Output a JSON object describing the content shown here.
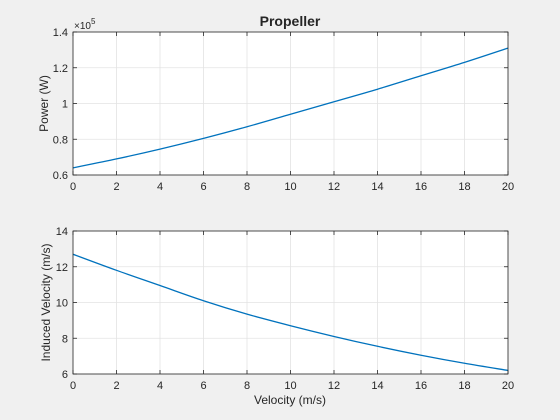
{
  "title": "Propeller",
  "colors": {
    "figure_bg": "#f0f0f0",
    "axes_bg": "#ffffff",
    "axis": "#262626",
    "grid": "#e3e3e3",
    "line": "#0072bd"
  },
  "chart_data": [
    {
      "type": "line",
      "title": "Propeller",
      "xlabel": "",
      "ylabel": "Power (W)",
      "y_exponent_label": "×10^5",
      "y_exponent_base": "×10",
      "y_exponent_power": "5",
      "xlim": [
        0,
        20
      ],
      "ylim": [
        0.6,
        1.4
      ],
      "grid": true,
      "x_ticks": [
        0,
        2,
        4,
        6,
        8,
        10,
        12,
        14,
        16,
        18,
        20
      ],
      "x_tick_labels": [
        "0",
        "2",
        "4",
        "6",
        "8",
        "10",
        "12",
        "14",
        "16",
        "18",
        "20"
      ],
      "y_ticks": [
        0.6,
        0.8,
        1.0,
        1.2,
        1.4
      ],
      "y_tick_labels": [
        "0.6",
        "0.8",
        "1",
        "1.2",
        "1.4"
      ],
      "series": [
        {
          "x": [
            0,
            2,
            4,
            6,
            8,
            10,
            12,
            14,
            16,
            18,
            20
          ],
          "y": [
            0.64,
            0.69,
            0.745,
            0.805,
            0.87,
            0.94,
            1.01,
            1.08,
            1.155,
            1.23,
            1.31
          ]
        }
      ]
    },
    {
      "type": "line",
      "title": "",
      "xlabel": "Velocity (m/s)",
      "ylabel": "Induced Velocity (m/s)",
      "xlim": [
        0,
        20
      ],
      "ylim": [
        6,
        14
      ],
      "grid": true,
      "x_ticks": [
        0,
        2,
        4,
        6,
        8,
        10,
        12,
        14,
        16,
        18,
        20
      ],
      "x_tick_labels": [
        "0",
        "2",
        "4",
        "6",
        "8",
        "10",
        "12",
        "14",
        "16",
        "18",
        "20"
      ],
      "y_ticks": [
        6,
        8,
        10,
        12,
        14
      ],
      "y_tick_labels": [
        "6",
        "8",
        "10",
        "12",
        "14"
      ],
      "series": [
        {
          "x": [
            0,
            2,
            4,
            6,
            8,
            10,
            12,
            14,
            16,
            18,
            20
          ],
          "y": [
            12.7,
            11.8,
            10.95,
            10.1,
            9.35,
            8.7,
            8.1,
            7.55,
            7.05,
            6.6,
            6.2
          ]
        }
      ]
    }
  ]
}
